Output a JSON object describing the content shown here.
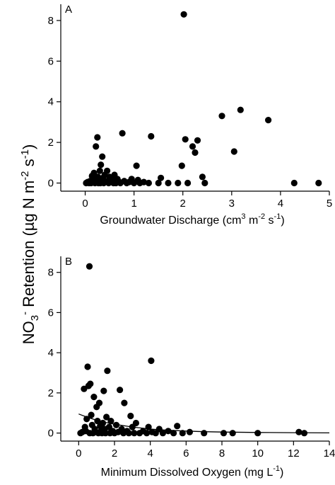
{
  "ylabel": {
    "base": "NO",
    "sub3": "3",
    "supminus": "-",
    "mid": " Retention (µg N m",
    "supm2": "-2",
    "s": " s",
    "sup1": "-1",
    "close": ")"
  },
  "panels": [
    {
      "letter": "A",
      "xlabel": {
        "text": "Groundwater Discharge (cm",
        "sup3": "3",
        "m": " m",
        "supm2": "-2",
        "s": " s",
        "sup1": "-1",
        "close": ")"
      }
    },
    {
      "letter": "B",
      "xlabel": {
        "text": "Minimum Dissolved Oxygen (mg L",
        "sup1": "-1",
        "close": ")"
      }
    }
  ],
  "chart_data": [
    {
      "type": "scatter",
      "panel": "A",
      "title": "",
      "xlabel": "Groundwater Discharge (cm3 m-2 s-1)",
      "ylabel": "NO3- Retention (µg N m-2 s-1)",
      "xlim": [
        -0.5,
        5
      ],
      "ylim": [
        -0.4,
        8.8
      ],
      "xticks": [
        0,
        1,
        2,
        3,
        4,
        5
      ],
      "yticks": [
        0,
        2,
        4,
        6,
        8
      ],
      "grid": false,
      "points": [
        {
          "x": 0.02,
          "y": 0.0
        },
        {
          "x": 0.05,
          "y": 0.05
        },
        {
          "x": 0.08,
          "y": 0.0
        },
        {
          "x": 0.1,
          "y": 0.1
        },
        {
          "x": 0.12,
          "y": 0.0
        },
        {
          "x": 0.14,
          "y": 0.35
        },
        {
          "x": 0.15,
          "y": 0.02
        },
        {
          "x": 0.17,
          "y": 0.1
        },
        {
          "x": 0.18,
          "y": 0.5
        },
        {
          "x": 0.2,
          "y": 0.0
        },
        {
          "x": 0.21,
          "y": 0.2
        },
        {
          "x": 0.22,
          "y": 1.8
        },
        {
          "x": 0.23,
          "y": 0.05
        },
        {
          "x": 0.25,
          "y": 2.25
        },
        {
          "x": 0.26,
          "y": 0.3
        },
        {
          "x": 0.27,
          "y": 0.0
        },
        {
          "x": 0.28,
          "y": 0.1
        },
        {
          "x": 0.3,
          "y": 0.6
        },
        {
          "x": 0.31,
          "y": 0.0
        },
        {
          "x": 0.32,
          "y": 0.9
        },
        {
          "x": 0.33,
          "y": 0.05
        },
        {
          "x": 0.35,
          "y": 1.3
        },
        {
          "x": 0.36,
          "y": 0.25
        },
        {
          "x": 0.38,
          "y": 0.0
        },
        {
          "x": 0.4,
          "y": 0.4
        },
        {
          "x": 0.42,
          "y": 0.1
        },
        {
          "x": 0.45,
          "y": 0.6
        },
        {
          "x": 0.48,
          "y": 0.0
        },
        {
          "x": 0.5,
          "y": 0.3
        },
        {
          "x": 0.52,
          "y": 0.05
        },
        {
          "x": 0.55,
          "y": 0.15
        },
        {
          "x": 0.58,
          "y": 0.0
        },
        {
          "x": 0.6,
          "y": 0.4
        },
        {
          "x": 0.63,
          "y": 0.0
        },
        {
          "x": 0.66,
          "y": 0.2
        },
        {
          "x": 0.7,
          "y": 0.05
        },
        {
          "x": 0.72,
          "y": 0.0
        },
        {
          "x": 0.76,
          "y": 2.45
        },
        {
          "x": 0.8,
          "y": 0.1
        },
        {
          "x": 0.85,
          "y": 0.0
        },
        {
          "x": 0.9,
          "y": 0.05
        },
        {
          "x": 0.95,
          "y": 0.2
        },
        {
          "x": 1.0,
          "y": 0.0
        },
        {
          "x": 1.05,
          "y": 0.85
        },
        {
          "x": 1.08,
          "y": 0.15
        },
        {
          "x": 1.12,
          "y": 0.0
        },
        {
          "x": 1.2,
          "y": 0.05
        },
        {
          "x": 1.3,
          "y": 0.0
        },
        {
          "x": 1.35,
          "y": 2.3
        },
        {
          "x": 1.5,
          "y": 0.0
        },
        {
          "x": 1.55,
          "y": 0.25
        },
        {
          "x": 1.7,
          "y": 0.0
        },
        {
          "x": 1.9,
          "y": 0.0
        },
        {
          "x": 1.98,
          "y": 0.85
        },
        {
          "x": 2.02,
          "y": 8.3
        },
        {
          "x": 2.05,
          "y": 2.15
        },
        {
          "x": 2.1,
          "y": 0.0
        },
        {
          "x": 2.2,
          "y": 1.8
        },
        {
          "x": 2.25,
          "y": 1.5
        },
        {
          "x": 2.3,
          "y": 2.1
        },
        {
          "x": 2.4,
          "y": 0.3
        },
        {
          "x": 2.45,
          "y": 0.0
        },
        {
          "x": 2.8,
          "y": 3.3
        },
        {
          "x": 3.05,
          "y": 1.55
        },
        {
          "x": 3.18,
          "y": 3.6
        },
        {
          "x": 3.75,
          "y": 3.1
        },
        {
          "x": 4.28,
          "y": 0.0
        },
        {
          "x": 4.78,
          "y": 0.0
        }
      ]
    },
    {
      "type": "scatter",
      "panel": "B",
      "title": "",
      "xlabel": "Minimum Dissolved Oxygen (mg L-1)",
      "ylabel": "NO3- Retention (µg N m-2 s-1)",
      "xlim": [
        -1,
        14
      ],
      "ylim": [
        -0.4,
        8.8
      ],
      "xticks": [
        0,
        2,
        4,
        6,
        8,
        10,
        12,
        14
      ],
      "yticks": [
        0,
        2,
        4,
        6,
        8
      ],
      "grid": false,
      "points": [
        {
          "x": 0.1,
          "y": 0.0
        },
        {
          "x": 0.2,
          "y": 0.05
        },
        {
          "x": 0.3,
          "y": 2.2
        },
        {
          "x": 0.35,
          "y": 0.3
        },
        {
          "x": 0.4,
          "y": 0.1
        },
        {
          "x": 0.45,
          "y": 0.7
        },
        {
          "x": 0.5,
          "y": 3.3
        },
        {
          "x": 0.55,
          "y": 2.35
        },
        {
          "x": 0.6,
          "y": 8.3
        },
        {
          "x": 0.62,
          "y": 0.0
        },
        {
          "x": 0.65,
          "y": 2.45
        },
        {
          "x": 0.7,
          "y": 0.9
        },
        {
          "x": 0.75,
          "y": 0.4
        },
        {
          "x": 0.8,
          "y": 0.0
        },
        {
          "x": 0.85,
          "y": 1.8
        },
        {
          "x": 0.9,
          "y": 0.2
        },
        {
          "x": 0.95,
          "y": 0.05
        },
        {
          "x": 1.0,
          "y": 1.3
        },
        {
          "x": 1.05,
          "y": 0.6
        },
        {
          "x": 1.1,
          "y": 0.0
        },
        {
          "x": 1.15,
          "y": 1.5
        },
        {
          "x": 1.2,
          "y": 0.35
        },
        {
          "x": 1.25,
          "y": 0.1
        },
        {
          "x": 1.3,
          "y": 0.0
        },
        {
          "x": 1.35,
          "y": 0.5
        },
        {
          "x": 1.4,
          "y": 2.1
        },
        {
          "x": 1.45,
          "y": 0.2
        },
        {
          "x": 1.5,
          "y": 0.0
        },
        {
          "x": 1.55,
          "y": 0.8
        },
        {
          "x": 1.6,
          "y": 3.1
        },
        {
          "x": 1.7,
          "y": 0.3
        },
        {
          "x": 1.75,
          "y": 0.0
        },
        {
          "x": 1.8,
          "y": 0.6
        },
        {
          "x": 1.9,
          "y": 0.1
        },
        {
          "x": 2.0,
          "y": 0.0
        },
        {
          "x": 2.1,
          "y": 0.4
        },
        {
          "x": 2.2,
          "y": 0.05
        },
        {
          "x": 2.3,
          "y": 2.15
        },
        {
          "x": 2.4,
          "y": 0.2
        },
        {
          "x": 2.5,
          "y": 0.0
        },
        {
          "x": 2.55,
          "y": 1.5
        },
        {
          "x": 2.7,
          "y": 0.1
        },
        {
          "x": 2.8,
          "y": 0.0
        },
        {
          "x": 2.9,
          "y": 0.85
        },
        {
          "x": 3.0,
          "y": 0.3
        },
        {
          "x": 3.1,
          "y": 0.0
        },
        {
          "x": 3.2,
          "y": 0.5
        },
        {
          "x": 3.4,
          "y": 0.0
        },
        {
          "x": 3.6,
          "y": 0.1
        },
        {
          "x": 3.8,
          "y": 0.0
        },
        {
          "x": 3.9,
          "y": 0.3
        },
        {
          "x": 4.05,
          "y": 3.6
        },
        {
          "x": 4.1,
          "y": 0.05
        },
        {
          "x": 4.3,
          "y": 0.0
        },
        {
          "x": 4.5,
          "y": 0.2
        },
        {
          "x": 4.7,
          "y": 0.0
        },
        {
          "x": 5.0,
          "y": 0.1
        },
        {
          "x": 5.3,
          "y": 0.0
        },
        {
          "x": 5.5,
          "y": 0.35
        },
        {
          "x": 5.8,
          "y": 0.0
        },
        {
          "x": 6.2,
          "y": 0.05
        },
        {
          "x": 7.0,
          "y": 0.0
        },
        {
          "x": 8.1,
          "y": 0.0
        },
        {
          "x": 8.6,
          "y": 0.0
        },
        {
          "x": 10.0,
          "y": 0.0
        },
        {
          "x": 12.3,
          "y": 0.05
        },
        {
          "x": 12.6,
          "y": 0.0
        }
      ],
      "trend_line": {
        "type": "fitted-curve",
        "x": [
          0,
          0.5,
          1,
          1.5,
          2,
          3,
          4,
          5,
          6,
          7,
          8,
          10,
          12,
          14
        ],
        "y": [
          0.95,
          0.78,
          0.64,
          0.53,
          0.44,
          0.3,
          0.2,
          0.14,
          0.1,
          0.07,
          0.05,
          0.03,
          0.02,
          0.01
        ]
      }
    }
  ]
}
